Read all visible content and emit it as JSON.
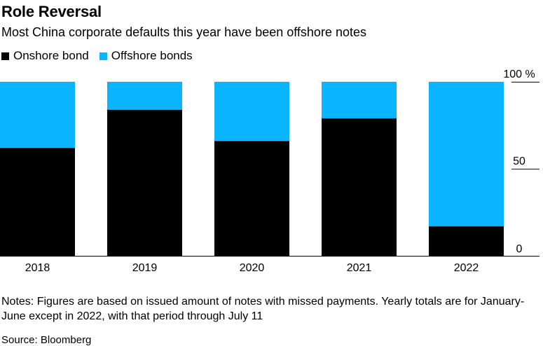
{
  "header": {
    "title": "Role Reversal",
    "subtitle": "Most China corporate defaults this year have been offshore notes"
  },
  "legend": {
    "onshore_label": "Onshore bond",
    "offshore_label": "Offshore bonds"
  },
  "colors": {
    "onshore": "#000000",
    "offshore": "#0ab4ff"
  },
  "chart_data": {
    "type": "bar",
    "stacked": true,
    "title": "Role Reversal",
    "subtitle": "Most China corporate defaults this year have been offshore notes",
    "categories": [
      "2018",
      "2019",
      "2020",
      "2021",
      "2022"
    ],
    "series": [
      {
        "name": "Onshore bond",
        "values": [
          62,
          84,
          66,
          79,
          17
        ]
      },
      {
        "name": "Offshore bonds",
        "values": [
          38,
          16,
          34,
          21,
          83
        ]
      }
    ],
    "y_ticks": [
      {
        "value": 100,
        "label": "100 %"
      },
      {
        "value": 50,
        "label": "50"
      },
      {
        "value": 0,
        "label": "0"
      }
    ],
    "ylim": [
      0,
      105
    ],
    "xlabel": "",
    "ylabel": "",
    "grid": false,
    "legend_position": "top-left"
  },
  "notes": "Notes: Figures are based on issued amount of notes with missed payments. Yearly totals are for January-June except in 2022, with that period through July 11",
  "source": "Source: Bloomberg"
}
